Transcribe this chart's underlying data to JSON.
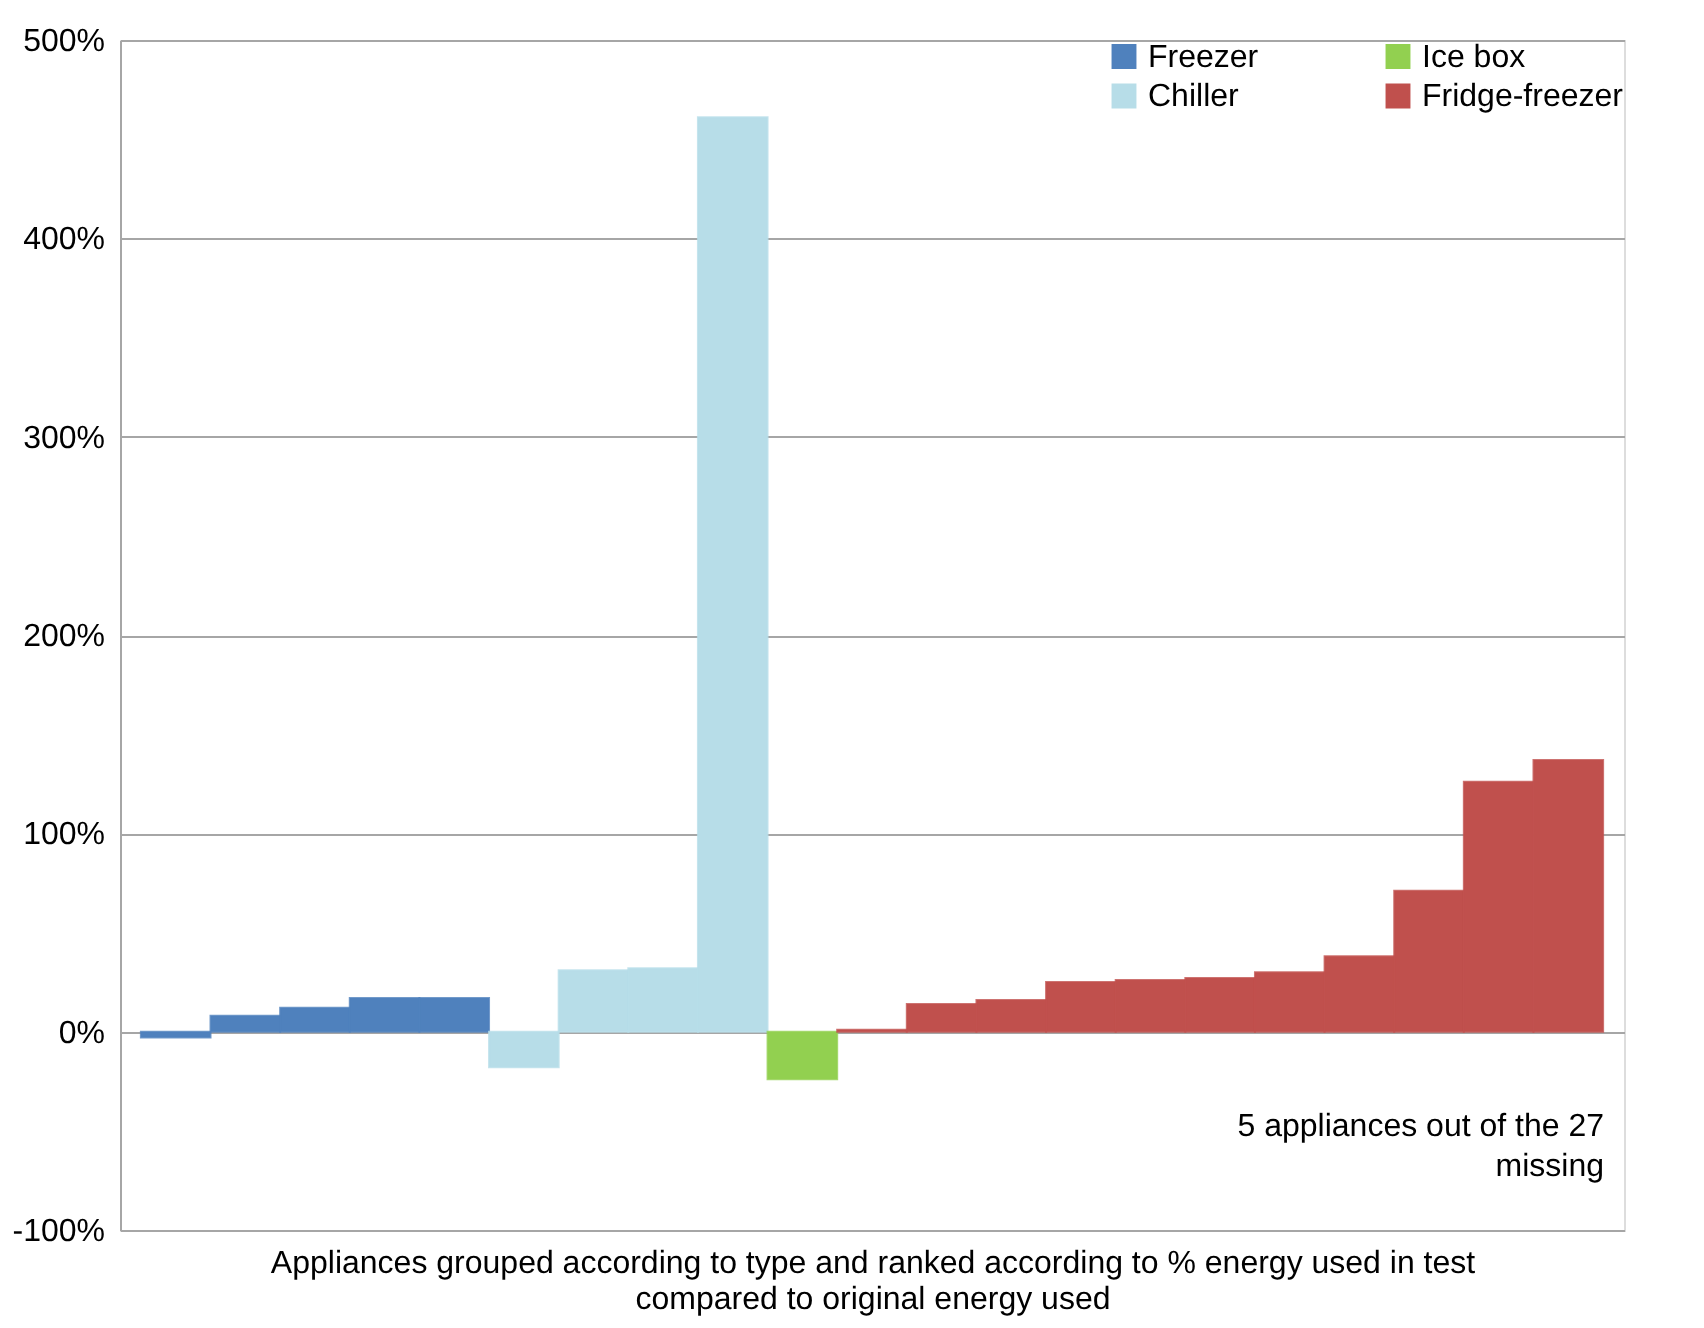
{
  "chart_data": {
    "type": "bar",
    "xlabel": "Appliances grouped according to type and ranked according to % energy used in test compared to original energy used",
    "categories": [
      null,
      null,
      null,
      null,
      null,
      null,
      null,
      null,
      null,
      null,
      null,
      null,
      null,
      null,
      null,
      null,
      null,
      null,
      null,
      null,
      null
    ],
    "series": [
      {
        "name": "Freezer",
        "color": "#4f81bd",
        "values": [
          -3,
          8,
          12,
          17,
          17,
          null,
          null,
          null,
          null,
          null,
          null,
          null,
          null,
          null,
          null,
          null,
          null,
          null,
          null,
          null,
          null
        ]
      },
      {
        "name": "Chiller",
        "color": "#b7dde8",
        "values": [
          null,
          null,
          null,
          null,
          null,
          -18,
          31,
          32,
          461,
          null,
          null,
          null,
          null,
          null,
          null,
          null,
          null,
          null,
          null,
          null,
          null
        ]
      },
      {
        "name": "Ice box",
        "color": "#92d050",
        "values": [
          null,
          null,
          null,
          null,
          null,
          null,
          null,
          null,
          null,
          -24,
          null,
          null,
          null,
          null,
          null,
          null,
          null,
          null,
          null,
          null,
          null
        ]
      },
      {
        "name": "Fridge-freezer",
        "color": "#c0504d",
        "values": [
          null,
          null,
          null,
          null,
          null,
          null,
          null,
          null,
          null,
          null,
          1,
          14,
          16,
          25,
          26,
          27,
          30,
          38,
          71,
          126,
          137
        ]
      }
    ],
    "ylim": [
      -100,
      500
    ],
    "yticks": [
      {
        "value": -100,
        "label": "-100%"
      },
      {
        "value": 0,
        "label": "0%"
      },
      {
        "value": 100,
        "label": "100%"
      },
      {
        "value": 200,
        "label": "200%"
      },
      {
        "value": 300,
        "label": "300%"
      },
      {
        "value": 400,
        "label": "400%"
      },
      {
        "value": 500,
        "label": "500%"
      }
    ],
    "grid": "y",
    "legend": "top right",
    "tick_labels": "y",
    "annotations": [
      "5 appliances out of the 27 missing"
    ]
  }
}
